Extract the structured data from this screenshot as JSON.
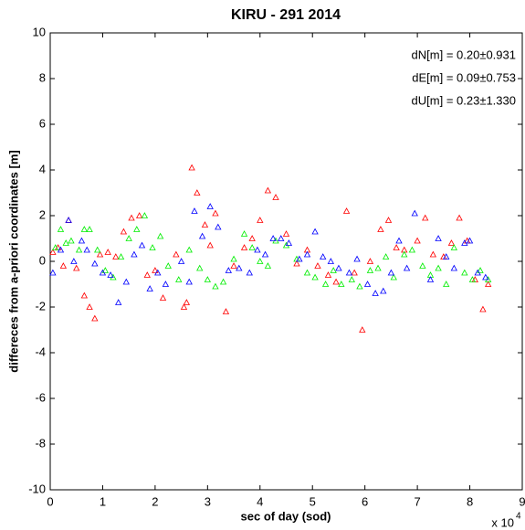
{
  "chart_data": {
    "type": "scatter",
    "title": "KIRU - 291 2014",
    "x_label": "sec of day (sod)",
    "y_label": "differeces from a-priori coordinates [m]",
    "x_multiplier": "x 10",
    "x_exponent": "4",
    "annotations": [
      "dN[m] = 0.20±0.931",
      "dE[m] = 0.09±0.753",
      "dU[m] = 0.23±1.330"
    ],
    "xlim": [
      0,
      90000
    ],
    "xticks": [
      0,
      {
        "value": 10000,
        "label": "1"
      },
      {
        "value": 20000,
        "label": "2"
      },
      {
        "value": 30000,
        "label": "3"
      },
      {
        "value": 40000,
        "label": "4"
      },
      {
        "value": 50000,
        "label": "5"
      },
      {
        "value": 60000,
        "label": "6"
      },
      {
        "value": 70000,
        "label": "7"
      },
      {
        "value": 80000,
        "label": "8"
      },
      {
        "value": 90000,
        "label": "9"
      }
    ],
    "ylim": [
      -10,
      10
    ],
    "yticks": [
      -10,
      -8,
      -6,
      -4,
      -2,
      0,
      2,
      4,
      6,
      8,
      10
    ],
    "grid": false,
    "series": [
      {
        "color": "#ff0000",
        "x": [
          500,
          1500,
          2500,
          3500,
          5000,
          6500,
          7500,
          8500,
          9500,
          11000,
          12500,
          14000,
          15500,
          17000,
          18500,
          20000,
          21500,
          24000,
          25500,
          26000,
          27000,
          28000,
          29500,
          30500,
          31500,
          33500,
          35000,
          37000,
          38500,
          40000,
          41500,
          43000,
          45000,
          47000,
          49000,
          51000,
          53000,
          54500,
          56500,
          58000,
          59500,
          61000,
          63000,
          64500,
          66000,
          67500,
          70000,
          71500,
          73000,
          75000,
          76500,
          78000,
          79500,
          81000,
          82500,
          83500
        ],
        "values": [
          0.4,
          0.6,
          -0.2,
          1.8,
          -0.3,
          -1.5,
          -2.0,
          -2.5,
          0.3,
          0.4,
          0.2,
          1.3,
          1.9,
          2.0,
          -0.6,
          -0.4,
          -1.6,
          0.3,
          -2.0,
          -1.8,
          4.1,
          3.0,
          1.6,
          0.7,
          2.1,
          -2.2,
          -0.2,
          0.6,
          1.0,
          1.8,
          3.1,
          2.8,
          1.2,
          -0.1,
          0.5,
          -0.2,
          -0.6,
          -0.9,
          2.2,
          -0.5,
          -3.0,
          0.0,
          1.4,
          1.8,
          0.6,
          0.5,
          0.9,
          1.9,
          0.3,
          0.2,
          0.8,
          1.9,
          0.9,
          -0.8,
          -2.1,
          -1.0
        ]
      },
      {
        "color": "#00ee00",
        "x": [
          1000,
          2000,
          3000,
          4000,
          5500,
          6500,
          7500,
          9000,
          10500,
          12000,
          13500,
          15000,
          16500,
          18000,
          19500,
          21000,
          22500,
          24500,
          26500,
          28500,
          30000,
          31500,
          33000,
          35000,
          37000,
          38500,
          40000,
          41500,
          43000,
          45000,
          47000,
          49000,
          50500,
          52500,
          54000,
          55500,
          57500,
          59000,
          61000,
          62500,
          64000,
          65500,
          67500,
          69000,
          71000,
          72500,
          74000,
          75500,
          77000,
          79000,
          80500,
          82000,
          83500
        ],
        "values": [
          0.6,
          1.4,
          0.8,
          0.9,
          0.5,
          1.4,
          1.4,
          0.5,
          -0.4,
          -0.7,
          0.2,
          1.0,
          1.4,
          2.0,
          0.6,
          1.1,
          -0.2,
          -0.8,
          0.5,
          -0.3,
          -0.8,
          -1.1,
          -0.9,
          0.1,
          1.2,
          0.6,
          0.0,
          -0.2,
          0.9,
          0.7,
          0.1,
          -0.5,
          -0.7,
          -1.0,
          -0.4,
          -1.0,
          -0.8,
          -1.1,
          -0.4,
          -0.3,
          0.2,
          -0.7,
          0.3,
          0.5,
          -0.2,
          -0.6,
          -0.3,
          -1.0,
          0.6,
          -0.5,
          -0.8,
          -0.4,
          -0.8
        ]
      },
      {
        "color": "#0000ff",
        "x": [
          500,
          2000,
          3500,
          4500,
          6000,
          7000,
          8500,
          10000,
          11500,
          13000,
          14500,
          16000,
          17500,
          19000,
          20500,
          22000,
          25000,
          26500,
          27500,
          29000,
          30500,
          32000,
          34000,
          36000,
          38000,
          39500,
          41000,
          42500,
          44000,
          45500,
          47500,
          49000,
          50500,
          52000,
          53500,
          55000,
          57000,
          58500,
          60500,
          62000,
          63500,
          65000,
          66500,
          68000,
          69500,
          72500,
          74000,
          75500,
          77000,
          79000,
          80000,
          81500,
          83000
        ],
        "values": [
          -0.5,
          0.5,
          1.8,
          0.0,
          0.9,
          0.5,
          -0.1,
          -0.5,
          -0.6,
          -1.8,
          -0.9,
          0.3,
          0.7,
          -1.2,
          -0.5,
          -1.0,
          0.0,
          -0.9,
          2.2,
          1.1,
          2.4,
          1.5,
          -0.4,
          -0.3,
          -0.5,
          0.5,
          0.3,
          1.0,
          1.0,
          0.8,
          0.1,
          0.3,
          1.3,
          0.2,
          0.0,
          -0.3,
          -0.5,
          0.1,
          -1.0,
          -1.4,
          -1.3,
          -0.5,
          0.9,
          -0.3,
          2.1,
          -0.8,
          1.0,
          0.2,
          -0.3,
          0.8,
          0.9,
          -0.5,
          -0.7
        ]
      }
    ]
  }
}
